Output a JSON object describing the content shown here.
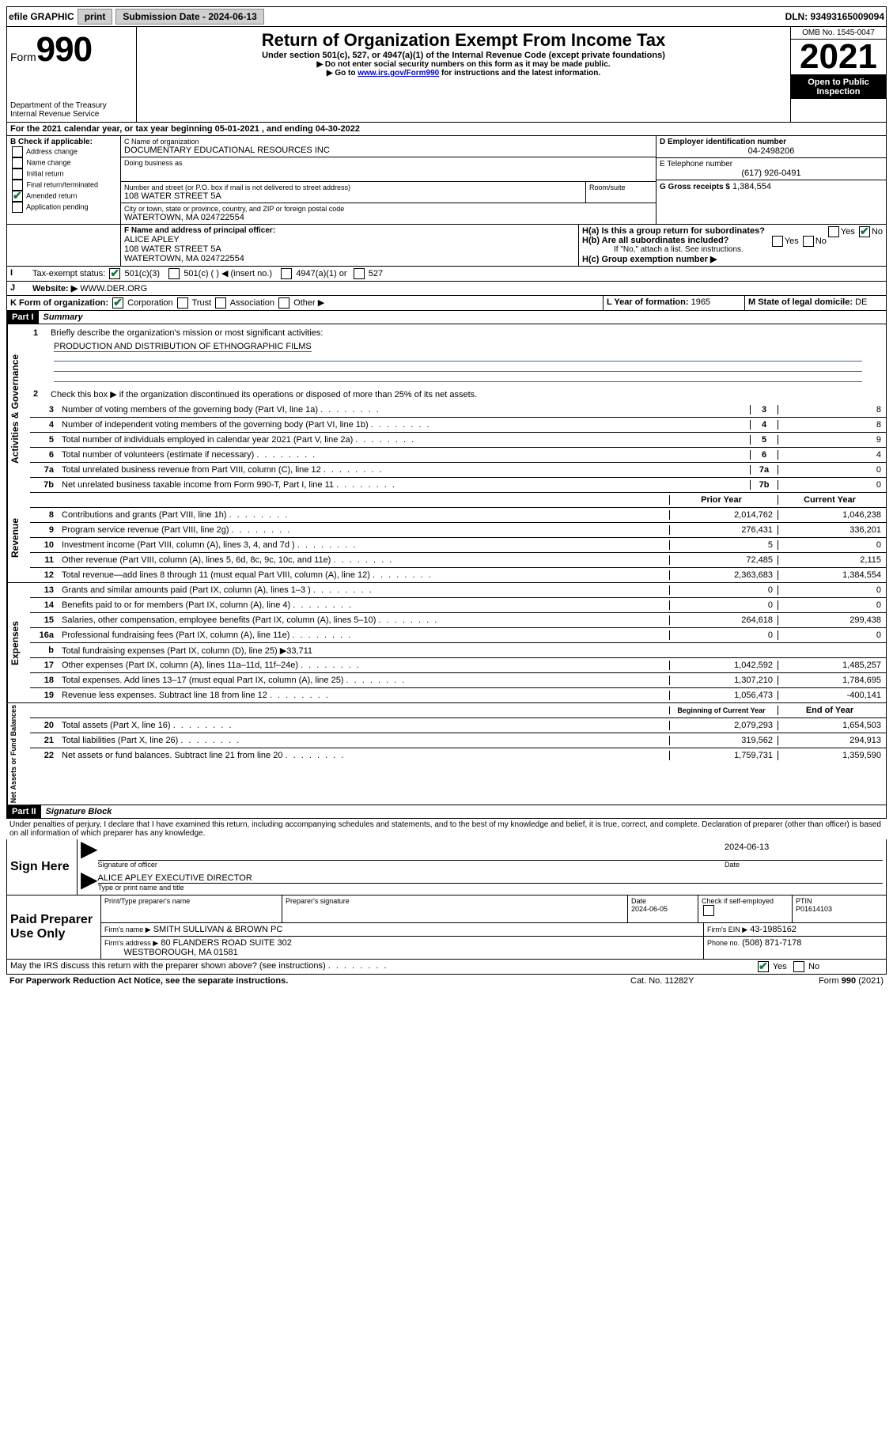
{
  "topbar": {
    "efile": "efile GRAPHIC",
    "print": "print",
    "submission_label": "Submission Date - 2024-06-13",
    "dln_label": "DLN: 93493165009094"
  },
  "header": {
    "form_label": "Form",
    "form_number": "990",
    "title": "Return of Organization Exempt From Income Tax",
    "subtitle": "Under section 501(c), 527, or 4947(a)(1) of the Internal Revenue Code (except private foundations)",
    "note1": "▶ Do not enter social security numbers on this form as it may be made public.",
    "note2_pre": "▶ Go to ",
    "note2_link": "www.irs.gov/Form990",
    "note2_post": " for instructions and the latest information.",
    "dept": "Department of the Treasury",
    "irs": "Internal Revenue Service",
    "omb": "OMB No. 1545-0047",
    "year": "2021",
    "open": "Open to Public Inspection"
  },
  "period": {
    "line_a": "For the 2021 calendar year, or tax year beginning 05-01-2021   , and ending 04-30-2022"
  },
  "boxB": {
    "label": "B Check if applicable:",
    "addr": "Address change",
    "name": "Name change",
    "init": "Initial return",
    "final": "Final return/terminated",
    "amend": "Amended return",
    "app": "Application pending"
  },
  "boxC": {
    "name_label": "C Name of organization",
    "org_name": "DOCUMENTARY EDUCATIONAL RESOURCES INC",
    "dba_label": "Doing business as",
    "addr_label": "Number and street (or P.O. box if mail is not delivered to street address)",
    "room_label": "Room/suite",
    "addr": "108 WATER STREET 5A",
    "city_label": "City or town, state or province, country, and ZIP or foreign postal code",
    "city": "WATERTOWN, MA  024722554"
  },
  "boxD": {
    "label": "D Employer identification number",
    "ein": "04-2498206"
  },
  "boxE": {
    "label": "E Telephone number",
    "phone": "(617) 926-0491"
  },
  "boxG": {
    "label": "G Gross receipts $",
    "amount": "1,384,554"
  },
  "boxF": {
    "label": "F Name and address of principal officer:",
    "name": "ALICE APLEY",
    "addr1": "108 WATER STREET 5A",
    "addr2": "WATERTOWN, MA  024722554"
  },
  "boxH": {
    "a": "H(a)  Is this a group return for subordinates?",
    "b": "H(b)  Are all subordinates included?",
    "note": "If \"No,\" attach a list. See instructions.",
    "c": "H(c)  Group exemption number ▶",
    "yes": "Yes",
    "no": "No"
  },
  "taxstatus": {
    "label": "Tax-exempt status:",
    "c3": "501(c)(3)",
    "c": "501(c) (   ) ◀ (insert no.)",
    "a1": "4947(a)(1) or",
    "s527": "527"
  },
  "website": {
    "label": "Website: ▶",
    "value": "WWW.DER.ORG"
  },
  "boxK": {
    "label": "K Form of organization:",
    "corp": "Corporation",
    "trust": "Trust",
    "assoc": "Association",
    "other": "Other ▶"
  },
  "boxL": {
    "label": "L Year of formation:",
    "value": "1965"
  },
  "boxM": {
    "label": "M State of legal domicile:",
    "value": "DE"
  },
  "part1": {
    "tag": "Part I",
    "title": "Summary",
    "q1": "Briefly describe the organization's mission or most significant activities:",
    "mission": "PRODUCTION AND DISTRIBUTION OF ETHNOGRAPHIC FILMS",
    "q2": "Check this box ▶        if the organization discontinued its operations or disposed of more than 25% of its net assets.",
    "lines": {
      "3": {
        "t": "Number of voting members of the governing body (Part VI, line 1a)",
        "v": "8"
      },
      "4": {
        "t": "Number of independent voting members of the governing body (Part VI, line 1b)",
        "v": "8"
      },
      "5": {
        "t": "Total number of individuals employed in calendar year 2021 (Part V, line 2a)",
        "v": "9"
      },
      "6": {
        "t": "Total number of volunteers (estimate if necessary)",
        "v": "4"
      },
      "7a": {
        "t": "Total unrelated business revenue from Part VIII, column (C), line 12",
        "v": "0"
      },
      "7b": {
        "t": "Net unrelated business taxable income from Form 990-T, Part I, line 11",
        "v": "0"
      }
    },
    "cols": {
      "prior": "Prior Year",
      "current": "Current Year"
    },
    "rev": {
      "8": {
        "t": "Contributions and grants (Part VIII, line 1h)",
        "p": "2,014,762",
        "c": "1,046,238"
      },
      "9": {
        "t": "Program service revenue (Part VIII, line 2g)",
        "p": "276,431",
        "c": "336,201"
      },
      "10": {
        "t": "Investment income (Part VIII, column (A), lines 3, 4, and 7d )",
        "p": "5",
        "c": "0"
      },
      "11": {
        "t": "Other revenue (Part VIII, column (A), lines 5, 6d, 8c, 9c, 10c, and 11e)",
        "p": "72,485",
        "c": "2,115"
      },
      "12": {
        "t": "Total revenue—add lines 8 through 11 (must equal Part VIII, column (A), line 12)",
        "p": "2,363,683",
        "c": "1,384,554"
      }
    },
    "exp": {
      "13": {
        "t": "Grants and similar amounts paid (Part IX, column (A), lines 1–3 )",
        "p": "0",
        "c": "0"
      },
      "14": {
        "t": "Benefits paid to or for members (Part IX, column (A), line 4)",
        "p": "0",
        "c": "0"
      },
      "15": {
        "t": "Salaries, other compensation, employee benefits (Part IX, column (A), lines 5–10)",
        "p": "264,618",
        "c": "299,438"
      },
      "16a": {
        "t": "Professional fundraising fees (Part IX, column (A), line 11e)",
        "p": "0",
        "c": "0"
      },
      "16b": {
        "t": "Total fundraising expenses (Part IX, column (D), line 25) ▶33,711",
        "p": "",
        "c": ""
      },
      "17": {
        "t": "Other expenses (Part IX, column (A), lines 11a–11d, 11f–24e)",
        "p": "1,042,592",
        "c": "1,485,257"
      },
      "18": {
        "t": "Total expenses. Add lines 13–17 (must equal Part IX, column (A), line 25)",
        "p": "1,307,210",
        "c": "1,784,695"
      },
      "19": {
        "t": "Revenue less expenses. Subtract line 18 from line 12",
        "p": "1,056,473",
        "c": "-400,141"
      }
    },
    "cols2": {
      "boy": "Beginning of Current Year",
      "eoy": "End of Year"
    },
    "net": {
      "20": {
        "t": "Total assets (Part X, line 16)",
        "p": "2,079,293",
        "c": "1,654,503"
      },
      "21": {
        "t": "Total liabilities (Part X, line 26)",
        "p": "319,562",
        "c": "294,913"
      },
      "22": {
        "t": "Net assets or fund balances. Subtract line 21 from line 20",
        "p": "1,759,731",
        "c": "1,359,590"
      }
    },
    "side_labels": {
      "gov": "Activities & Governance",
      "rev": "Revenue",
      "exp": "Expenses",
      "net": "Net Assets or Fund Balances"
    }
  },
  "part2": {
    "tag": "Part II",
    "title": "Signature Block",
    "decl": "Under penalties of perjury, I declare that I have examined this return, including accompanying schedules and statements, and to the best of my knowledge and belief, it is true, correct, and complete. Declaration of preparer (other than officer) is based on all information of which preparer has any knowledge."
  },
  "sign": {
    "here": "Sign Here",
    "sig_officer": "Signature of officer",
    "date": "Date",
    "sig_date": "2024-06-13",
    "name": "ALICE APLEY EXECUTIVE DIRECTOR",
    "typed": "Type or print name and title"
  },
  "paid": {
    "label": "Paid Preparer Use Only",
    "col_name": "Print/Type preparer's name",
    "col_sig": "Preparer's signature",
    "col_date": "Date",
    "date": "2024-06-05",
    "check": "Check         if self-employed",
    "ptin_label": "PTIN",
    "ptin": "P01614103",
    "firm_name_label": "Firm's name      ▶",
    "firm_name": "SMITH SULLIVAN & BROWN PC",
    "firm_ein_label": "Firm's EIN ▶",
    "firm_ein": "43-1985162",
    "firm_addr_label": "Firm's address ▶",
    "firm_addr1": "80 FLANDERS ROAD SUITE 302",
    "firm_addr2": "WESTBOROUGH, MA  01581",
    "phone_label": "Phone no.",
    "phone": "(508) 871-7178"
  },
  "footer": {
    "discuss": "May the IRS discuss this return with the preparer shown above? (see instructions)",
    "yes": "Yes",
    "no": "No",
    "paperwork": "For Paperwork Reduction Act Notice, see the separate instructions.",
    "cat": "Cat. No. 11282Y",
    "form": "Form 990 (2021)"
  }
}
